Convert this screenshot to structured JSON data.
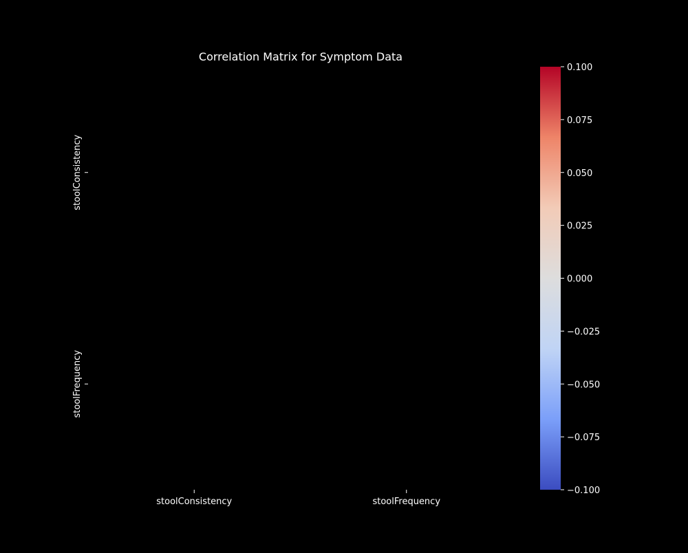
{
  "chart_data": {
    "type": "heatmap",
    "title": "Correlation Matrix for Symptom Data",
    "x_categories": [
      "stoolConsistency",
      "stoolFrequency"
    ],
    "y_categories": [
      "stoolConsistency",
      "stoolFrequency"
    ],
    "values": [
      [
        null,
        null
      ],
      [
        null,
        null
      ]
    ],
    "colorbar": {
      "min": -0.1,
      "max": 0.1,
      "ticks": [
        "0.100",
        "0.075",
        "0.050",
        "0.025",
        "0.000",
        "−0.025",
        "−0.050",
        "−0.075",
        "−0.100"
      ],
      "tick_values": [
        0.1,
        0.075,
        0.05,
        0.025,
        0.0,
        -0.025,
        -0.05,
        -0.075,
        -0.1
      ],
      "colormap": "coolwarm",
      "stops": [
        "#3b4cc0",
        "#7b9ff9",
        "#c0d4f5",
        "#dddddd",
        "#f2cbb7",
        "#ee8468",
        "#b40426"
      ]
    },
    "grid": false
  },
  "colors": {
    "background": "#000000",
    "text": "#ffffff"
  }
}
